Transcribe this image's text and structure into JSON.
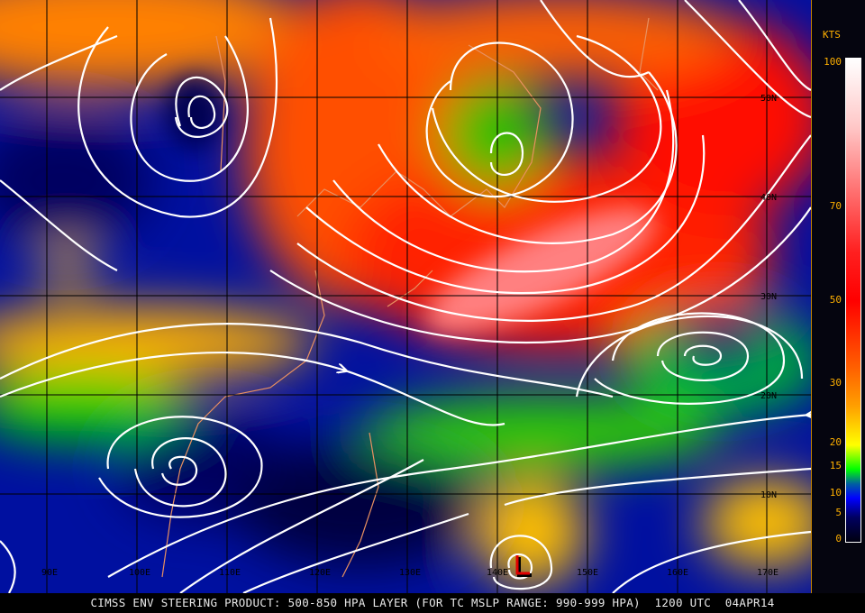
{
  "caption": "CIMSS ENV STEERING PRODUCT: 500-850 HPA LAYER (FOR TC MSLP RANGE: 990-999 HPA)  1200 UTC  04APR14",
  "legend": {
    "units": "KTS",
    "ticks": [
      "100",
      "70",
      "50",
      "30",
      "20",
      "15",
      "10",
      "5",
      "0"
    ],
    "colors": [
      "#ffffff",
      "#ff8080",
      "#ff0000",
      "#ff6000",
      "#ffff00",
      "#00ff00",
      "#0000ff",
      "#000060",
      "#000010"
    ]
  },
  "map": {
    "longitude_labels": [
      "90E",
      "100E",
      "110E",
      "120E",
      "130E",
      "140E",
      "150E",
      "160E",
      "170E"
    ],
    "latitude_labels": [
      "50N",
      "40N",
      "30N",
      "20N",
      "10N"
    ],
    "storm_marker": "L",
    "coastline_color": "#e89060",
    "streamline_color": "#ffffff",
    "grid_color": "#000000"
  }
}
